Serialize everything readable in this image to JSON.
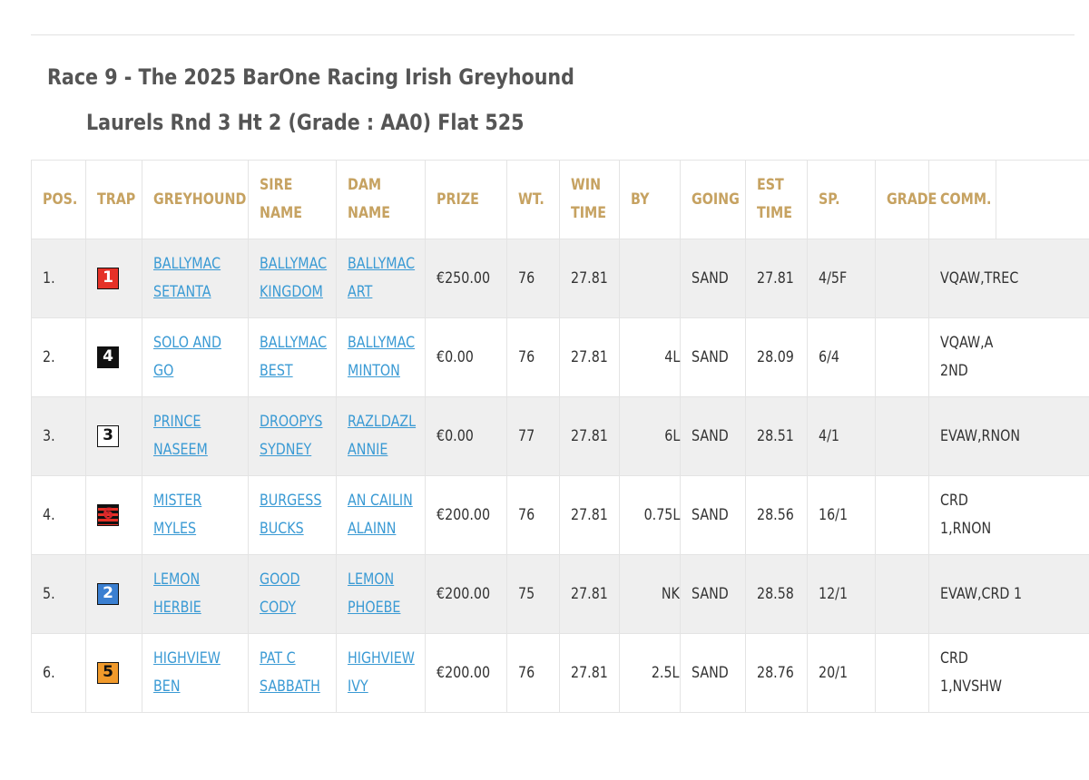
{
  "race": {
    "title_line1": "Race 9 - The 2025 BarOne Racing Irish Greyhound",
    "title_line2": "Laurels Rnd 3 Ht 2   (Grade : AA0) Flat 525"
  },
  "table": {
    "headers": {
      "pos": "POS.",
      "trap": "TRAP",
      "greyhound": "GREYHOUND",
      "sire_1": "SIRE",
      "sire_2": "NAME",
      "dam_1": "DAM",
      "dam_2": "NAME",
      "prize": "PRIZE",
      "wt": "WT.",
      "win_1": "WIN",
      "win_2": "TIME",
      "by": "BY",
      "going": "GOING",
      "est_1": "EST",
      "est_2": "TIME",
      "sp": "SP.",
      "grade": "GRADE",
      "comm": "COMM."
    },
    "trap_colors": {
      "1": "#e53127",
      "2": "#3a7fd1",
      "3": "#ffffff",
      "4": "#111111",
      "5": "#f19a2b",
      "6": "#d9262c"
    },
    "rows": [
      {
        "pos": "1.",
        "trap": "1",
        "greyhound_1": "BALLYMAC",
        "greyhound_2": "SETANTA",
        "sire_1": "BALLYMAC",
        "sire_2": "KINGDOM",
        "dam_1": "BALLYMAC",
        "dam_2": "ART",
        "prize": "€250.00",
        "wt": "76",
        "win_time": "27.81",
        "by": "",
        "going": "SAND",
        "est_time": "27.81",
        "sp": "4/5F",
        "grade": "",
        "comm_1": "VQAW,TREC",
        "comm_2": ""
      },
      {
        "pos": "2.",
        "trap": "4",
        "greyhound_1": "SOLO AND",
        "greyhound_2": "GO",
        "sire_1": "BALLYMAC",
        "sire_2": "BEST",
        "dam_1": "BALLYMAC",
        "dam_2": "MINTON",
        "prize": "€0.00",
        "wt": "76",
        "win_time": "27.81",
        "by": "4L",
        "going": "SAND",
        "est_time": "28.09",
        "sp": "6/4",
        "grade": "",
        "comm_1": "VQAW,A",
        "comm_2": "2ND"
      },
      {
        "pos": "3.",
        "trap": "3",
        "greyhound_1": "PRINCE",
        "greyhound_2": "NASEEM",
        "sire_1": "DROOPYS",
        "sire_2": "SYDNEY",
        "dam_1": "RAZLDAZL",
        "dam_2": "ANNIE",
        "prize": "€0.00",
        "wt": "77",
        "win_time": "27.81",
        "by": "6L",
        "going": "SAND",
        "est_time": "28.51",
        "sp": "4/1",
        "grade": "",
        "comm_1": "EVAW,RNON",
        "comm_2": ""
      },
      {
        "pos": "4.",
        "trap": "6",
        "greyhound_1": "MISTER",
        "greyhound_2": "MYLES",
        "sire_1": "BURGESS",
        "sire_2": "BUCKS",
        "dam_1": "AN CAILIN",
        "dam_2": "ALAINN",
        "prize": "€200.00",
        "wt": "76",
        "win_time": "27.81",
        "by": "0.75L",
        "going": "SAND",
        "est_time": "28.56",
        "sp": "16/1",
        "grade": "",
        "comm_1": "CRD",
        "comm_2": "1,RNON"
      },
      {
        "pos": "5.",
        "trap": "2",
        "greyhound_1": "LEMON",
        "greyhound_2": "HERBIE",
        "sire_1": "GOOD",
        "sire_2": "CODY",
        "dam_1": "LEMON",
        "dam_2": "PHOEBE",
        "prize": "€200.00",
        "wt": "75",
        "win_time": "27.81",
        "by": "NK",
        "going": "SAND",
        "est_time": "28.58",
        "sp": "12/1",
        "grade": "",
        "comm_1": "EVAW,CRD 1",
        "comm_2": ""
      },
      {
        "pos": "6.",
        "trap": "5",
        "greyhound_1": "HIGHVIEW",
        "greyhound_2": "BEN",
        "sire_1": "PAT C",
        "sire_2": "SABBATH",
        "dam_1": "HIGHVIEW",
        "dam_2": "IVY",
        "prize": "€200.00",
        "wt": "76",
        "win_time": "27.81",
        "by": "2.5L",
        "going": "SAND",
        "est_time": "28.76",
        "sp": "20/1",
        "grade": "",
        "comm_1": "CRD",
        "comm_2": "1,NVSHW"
      }
    ]
  }
}
